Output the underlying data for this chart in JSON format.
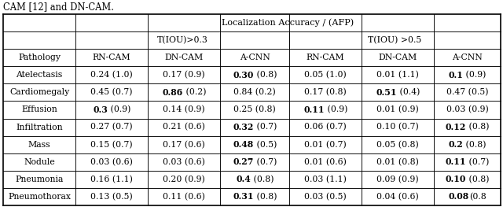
{
  "title_text": "CAM [12] and DN-CAM.",
  "header_top": "Localization Accuracy / (AFP)",
  "header_mid_left": "T(IOU)>0.3",
  "header_mid_right": "T(IOU) >0.5",
  "col_headers": [
    "Pathology",
    "RN-CAM",
    "DN-CAM",
    "A-CNN",
    "RN-CAM",
    "DN-CAM",
    "A-CNN"
  ],
  "cell_data": [
    [
      "Atelectasis",
      "0.24 (1.0)",
      "0.17 (0.9)",
      "0.30 (0.8)",
      "0.05 (1.0)",
      "0.01 (1.1)",
      "0.1 (0.9)"
    ],
    [
      "Cardiomegaly",
      "0.45 (0.7)",
      "0.86 (0.2)",
      "0.84 (0.2)",
      "0.17 (0.8)",
      "0.51 (0.4)",
      "0.47 (0.5)"
    ],
    [
      "Effusion",
      "0.3 (0.9)",
      "0.14 (0.9)",
      "0.25 (0.8)",
      "0.11 (0.9)",
      "0.01 (0.9)",
      "0.03 (0.9)"
    ],
    [
      "Infiltration",
      "0.27 (0.7)",
      "0.21 (0.6)",
      "0.32 (0.7)",
      "0.06 (0.7)",
      "0.10 (0.7)",
      "0.12 (0.8)"
    ],
    [
      "Mass",
      "0.15 (0.7)",
      "0.17 (0.6)",
      "0.48 (0.5)",
      "0.01 (0.7)",
      "0.05 (0.8)",
      "0.2 (0.8)"
    ],
    [
      "Nodule",
      "0.03 (0.6)",
      "0.03 (0.6)",
      "0.27 (0.7)",
      "0.01 (0.6)",
      "0.01 (0.8)",
      "0.11 (0.7)"
    ],
    [
      "Pneumonia",
      "0.16 (1.1)",
      "0.20 (0.9)",
      "0.4 (0.8)",
      "0.03 (1.1)",
      "0.09 (0.9)",
      "0.10 (0.8)"
    ],
    [
      "Pneumothorax",
      "0.13 (0.5)",
      "0.11 (0.6)",
      "0.31 (0.8)",
      "0.03 (0.5)",
      "0.04 (0.6)",
      "0.08(0.8"
    ]
  ],
  "bold_cells": {
    "0,3": [
      "0.30",
      " (0.8)"
    ],
    "0,6": [
      "0.1",
      " (0.9)"
    ],
    "1,2": [
      "0.86",
      " (0.2)"
    ],
    "1,5": [
      "0.51",
      " (0.4)"
    ],
    "2,1": [
      "0.3",
      " (0.9)"
    ],
    "2,4": [
      "0.11",
      " (0.9)"
    ],
    "3,3": [
      "0.32",
      " (0.7)"
    ],
    "3,6": [
      "0.12",
      " (0.8)"
    ],
    "4,3": [
      "0.48",
      " (0.5)"
    ],
    "4,6": [
      "0.2",
      " (0.8)"
    ],
    "5,3": [
      "0.27",
      " (0.7)"
    ],
    "5,6": [
      "0.11",
      " (0.7)"
    ],
    "6,3": [
      "0.4",
      " (0.8)"
    ],
    "6,6": [
      "0.10",
      " (0.8)"
    ],
    "7,3": [
      "0.31",
      " (0.8)"
    ],
    "7,6": [
      "0.08",
      "(0.8"
    ]
  },
  "figsize": [
    6.4,
    2.63
  ],
  "dpi": 100,
  "font_size": 7.8
}
